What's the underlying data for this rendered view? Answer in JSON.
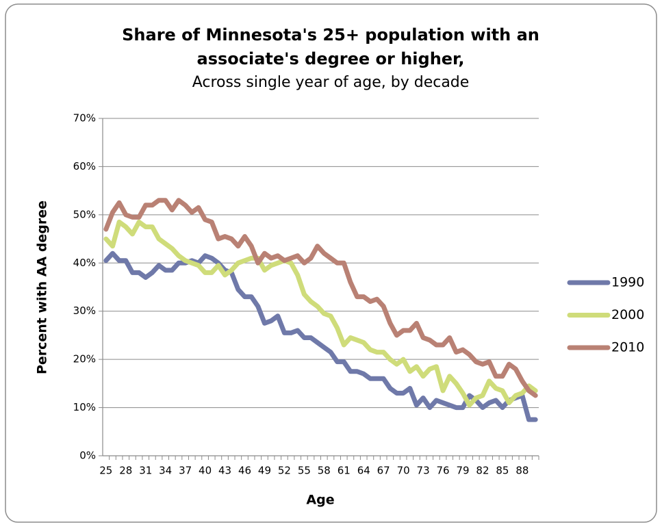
{
  "chart_data": {
    "type": "line",
    "title": [
      "Share of Minnesota's 25+ population with an",
      "associate's degree or higher,"
    ],
    "subtitle": "Across single year of age, by decade",
    "x_label": "Age",
    "y_label": "Percent with AA degree",
    "categories": [
      25,
      null,
      null,
      28,
      null,
      null,
      31,
      null,
      null,
      34,
      null,
      null,
      37,
      null,
      null,
      40,
      null,
      null,
      43,
      null,
      null,
      46,
      null,
      null,
      49,
      null,
      null,
      52,
      null,
      null,
      55,
      null,
      null,
      58,
      null,
      null,
      61,
      null,
      null,
      64,
      null,
      null,
      67,
      null,
      null,
      70,
      null,
      null,
      73,
      null,
      null,
      76,
      null,
      null,
      79,
      null,
      null,
      82,
      null,
      null,
      85,
      null,
      null,
      88,
      null,
      null
    ],
    "series": [
      {
        "name": "1990",
        "color": "#6f79a9",
        "values": [
          40.5,
          42,
          40.5,
          40.5,
          38,
          38,
          37,
          38,
          39.5,
          38.5,
          38.5,
          40,
          40,
          40.5,
          40,
          41.5,
          41,
          40,
          38.5,
          38,
          34.5,
          33,
          33,
          31,
          27.5,
          28,
          29,
          25.5,
          25.5,
          26,
          24.5,
          24.5,
          23.5,
          22.5,
          21.5,
          19.5,
          19.5,
          17.5,
          17.5,
          17,
          16,
          16,
          16,
          14,
          13,
          13,
          14,
          10.5,
          12,
          10,
          11.5,
          11,
          10.5,
          10,
          10,
          12.5,
          11.5,
          10,
          11,
          11.5,
          10,
          11.5,
          12,
          12.5,
          7.5,
          7.5
        ]
      },
      {
        "name": "2000",
        "color": "#cfdc7a",
        "values": [
          45,
          43.5,
          48.5,
          47.5,
          46,
          48.5,
          47.5,
          47.5,
          45,
          44,
          43,
          41.5,
          40.5,
          40,
          39.5,
          38,
          38,
          39.5,
          37.5,
          38.5,
          40,
          40.5,
          41,
          41,
          38.5,
          39.5,
          40,
          40.5,
          40,
          37.5,
          33.5,
          32,
          31,
          29.5,
          29,
          26.5,
          23,
          24.5,
          24,
          23.5,
          22,
          21.5,
          21.5,
          20,
          19,
          20,
          17.5,
          18.5,
          16.5,
          18,
          18.5,
          13.5,
          16.5,
          15,
          13,
          10.5,
          12,
          12.5,
          15.5,
          14,
          13.5,
          11,
          12.5,
          13,
          14.5,
          13.5
        ]
      },
      {
        "name": "2010",
        "color": "#b98174",
        "values": [
          47,
          50.5,
          52.5,
          50,
          49.5,
          49.5,
          52,
          52,
          53,
          53,
          51,
          53,
          52,
          50.5,
          51.5,
          49,
          48.5,
          45,
          45.5,
          45,
          43.5,
          45.5,
          43.5,
          40,
          42,
          41,
          41.5,
          40.5,
          41,
          41.5,
          40,
          41,
          43.5,
          42,
          41,
          40,
          40,
          36,
          33,
          33,
          32,
          32.5,
          31,
          27.5,
          25,
          26,
          26,
          27.5,
          24.5,
          24,
          23,
          23,
          24.5,
          21.5,
          22,
          21,
          19.5,
          19,
          19.5,
          16.5,
          16.5,
          19,
          18,
          15.5,
          13.5,
          12.5
        ]
      }
    ],
    "ylim": [
      0,
      70
    ],
    "yticks": [
      {
        "value": 0,
        "label": "0%"
      },
      {
        "value": 10,
        "label": "10%"
      },
      {
        "value": 20,
        "label": "20%"
      },
      {
        "value": 30,
        "label": "30%"
      },
      {
        "value": 40,
        "label": "40%"
      },
      {
        "value": 50,
        "label": "50%"
      },
      {
        "value": 60,
        "label": "60%"
      },
      {
        "value": 70,
        "label": "70%"
      }
    ],
    "grid": true,
    "legend": "right"
  }
}
